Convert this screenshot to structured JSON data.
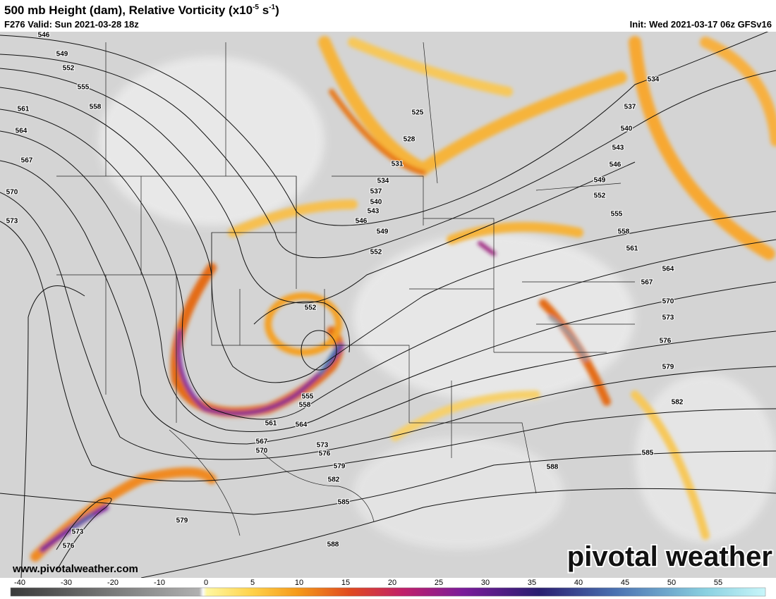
{
  "header": {
    "title": [
      "500 mb Height (dam), Relative Vorticity (x10",
      "-5",
      " s",
      "-1",
      ")"
    ],
    "valid": "F276 Valid: Sun 2021-03-28 18z",
    "init": "Init: Wed 2021-03-17 06z GFSv16"
  },
  "map": {
    "contour_labels": [
      546,
      549,
      552,
      555,
      558,
      561,
      564,
      567,
      570,
      573,
      534,
      525,
      528,
      531,
      534,
      537,
      540,
      543,
      546,
      549,
      552,
      537,
      540,
      543,
      546,
      549,
      552,
      555,
      558,
      561,
      564,
      567,
      570,
      573,
      576,
      579,
      582,
      585,
      588,
      552,
      555,
      558,
      561,
      564,
      567,
      570,
      573,
      576,
      579,
      582,
      585,
      588,
      579,
      573,
      576
    ]
  },
  "footer": {
    "website": "www.pivotalweather.com",
    "logo": "pivotal weather"
  },
  "colorbar": {
    "ticks": [
      -40,
      -30,
      -20,
      -10,
      0,
      5,
      10,
      15,
      20,
      25,
      30,
      35,
      40,
      45,
      50,
      55
    ]
  }
}
